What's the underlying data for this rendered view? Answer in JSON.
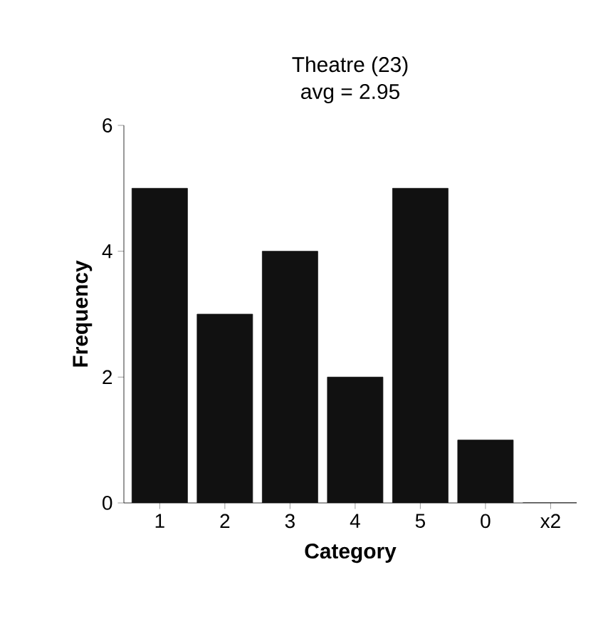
{
  "chart_data": {
    "type": "bar",
    "title": "Theatre (23)",
    "subtitle": "avg = 2.95",
    "xlabel": "Category",
    "ylabel": "Frequency",
    "categories": [
      "1",
      "2",
      "3",
      "4",
      "5",
      "0",
      "x2"
    ],
    "values": [
      5,
      3,
      4,
      2,
      5,
      1,
      0
    ],
    "color": "#111111",
    "ylim": [
      0,
      6
    ],
    "yticks": [
      0,
      2,
      4,
      6
    ]
  }
}
